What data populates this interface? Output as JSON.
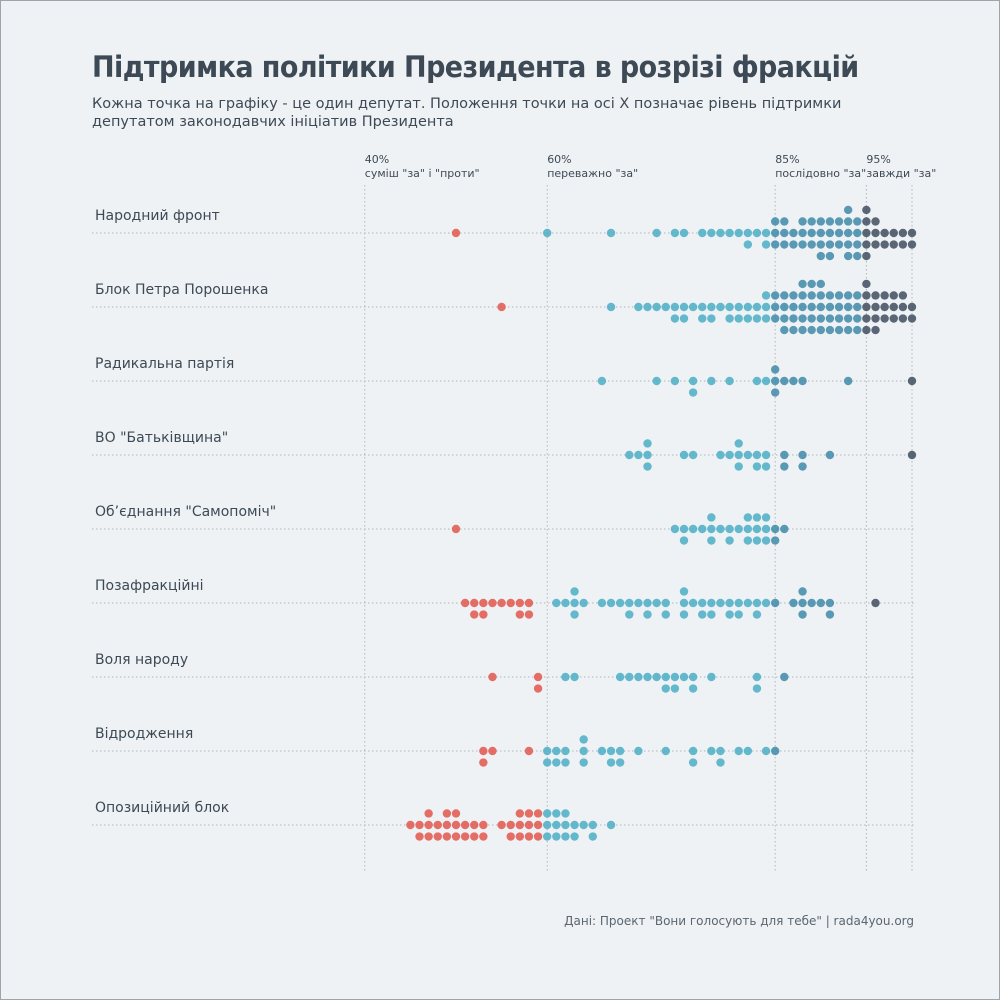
{
  "title": "Підтримка політики Президента в розрізі фракцій",
  "subtitle": "Кожна точка на графіку - це один депутат. Положення точки на осі X позначає рівень підтримки депутатом законодавчих ініціатив Президента",
  "footer": "Дані: Проект \"Вони голосують для тебе\" | rada4you.org",
  "colors": {
    "background": "#eff2f5",
    "text": "#3d4a55",
    "against": "#e2574c",
    "mostly_for": "#4aaec4",
    "consistently_for": "#3e8aa8",
    "always_for": "#3f4e5e",
    "grid": "#aeb7bd"
  },
  "chart_data": {
    "type": "scatter",
    "subtype": "beeswarm",
    "x_unit": "%",
    "xlim": [
      25,
      100
    ],
    "reference_lines": [
      {
        "x": 40,
        "label_value": "40%",
        "label_text": "суміш \"за\" і \"проти\""
      },
      {
        "x": 60,
        "label_value": "60%",
        "label_text": "переважно \"за\""
      },
      {
        "x": 85,
        "label_value": "85%",
        "label_text": "послідовно \"за\""
      },
      {
        "x": 95,
        "label_value": "95%",
        "label_text": "завжди \"за\""
      },
      {
        "x": 100,
        "label_value": "",
        "label_text": ""
      }
    ],
    "color_rule": "red below 60%, light blue 60–85%, teal 85–95%, dark slate 95%+",
    "factions": [
      {
        "name": "Народний фронт",
        "values": [
          50,
          60,
          67,
          72,
          74,
          75,
          77,
          78,
          79,
          80,
          81,
          82,
          82,
          83,
          84,
          84,
          85,
          85,
          85,
          86,
          86,
          86,
          87,
          87,
          88,
          88,
          88,
          89,
          89,
          89,
          90,
          90,
          90,
          90,
          91,
          91,
          91,
          91,
          92,
          92,
          92,
          93,
          93,
          93,
          93,
          93,
          94,
          94,
          94,
          94,
          95,
          95,
          95,
          95,
          95,
          96,
          96,
          96,
          97,
          97,
          98,
          98,
          99,
          99,
          100,
          100
        ]
      },
      {
        "name": "Блок Петра Порошенка",
        "values": [
          55,
          67,
          70,
          71,
          72,
          73,
          74,
          74,
          75,
          75,
          76,
          77,
          77,
          78,
          78,
          79,
          80,
          80,
          81,
          81,
          82,
          82,
          83,
          83,
          84,
          84,
          84,
          85,
          85,
          85,
          86,
          86,
          86,
          86,
          87,
          87,
          87,
          87,
          88,
          88,
          88,
          88,
          88,
          89,
          89,
          89,
          89,
          89,
          90,
          90,
          90,
          90,
          90,
          91,
          91,
          91,
          91,
          92,
          92,
          92,
          92,
          93,
          93,
          93,
          93,
          94,
          94,
          94,
          94,
          95,
          95,
          95,
          95,
          95,
          96,
          96,
          96,
          96,
          97,
          97,
          97,
          98,
          98,
          98,
          99,
          99,
          99,
          100,
          100
        ]
      },
      {
        "name": "Радикальна партія",
        "values": [
          66,
          72,
          74,
          76,
          76,
          78,
          80,
          83,
          84,
          85,
          85,
          85,
          86,
          87,
          88,
          93,
          100
        ]
      },
      {
        "name": "ВО \"Батьківщина\"",
        "values": [
          69,
          70,
          71,
          71,
          71,
          75,
          76,
          79,
          80,
          81,
          81,
          81,
          82,
          83,
          83,
          84,
          84,
          86,
          86,
          88,
          88,
          91,
          100
        ]
      },
      {
        "name": "Об’єднання \"Самопоміч\"",
        "values": [
          50,
          74,
          75,
          75,
          76,
          77,
          78,
          78,
          78,
          79,
          80,
          80,
          81,
          82,
          82,
          82,
          83,
          83,
          83,
          84,
          84,
          84,
          85,
          85,
          86
        ]
      },
      {
        "name": "Позафракційні",
        "values": [
          51,
          52,
          52,
          53,
          53,
          54,
          55,
          56,
          57,
          57,
          58,
          58,
          61,
          62,
          63,
          63,
          63,
          64,
          66,
          67,
          68,
          69,
          69,
          70,
          71,
          71,
          72,
          73,
          73,
          75,
          75,
          75,
          76,
          77,
          77,
          78,
          78,
          79,
          80,
          80,
          81,
          81,
          82,
          83,
          83,
          84,
          85,
          87,
          88,
          88,
          88,
          89,
          90,
          91,
          91,
          96
        ]
      },
      {
        "name": "Воля народу",
        "values": [
          54,
          59,
          59,
          62,
          63,
          68,
          69,
          70,
          71,
          72,
          73,
          73,
          74,
          74,
          75,
          76,
          76,
          78,
          83,
          83,
          86
        ]
      },
      {
        "name": "Відродження",
        "values": [
          53,
          53,
          54,
          58,
          60,
          60,
          61,
          61,
          62,
          62,
          64,
          64,
          64,
          66,
          67,
          67,
          68,
          68,
          70,
          73,
          76,
          76,
          78,
          79,
          79,
          81,
          82,
          84,
          85
        ]
      },
      {
        "name": "Опозиційний блок",
        "values": [
          45,
          46,
          46,
          47,
          47,
          47,
          48,
          48,
          49,
          49,
          49,
          50,
          50,
          50,
          51,
          51,
          52,
          52,
          53,
          53,
          55,
          56,
          56,
          57,
          57,
          57,
          58,
          58,
          58,
          59,
          59,
          59,
          60,
          60,
          60,
          61,
          61,
          61,
          62,
          62,
          62,
          63,
          63,
          64,
          65,
          65,
          67
        ]
      }
    ]
  }
}
